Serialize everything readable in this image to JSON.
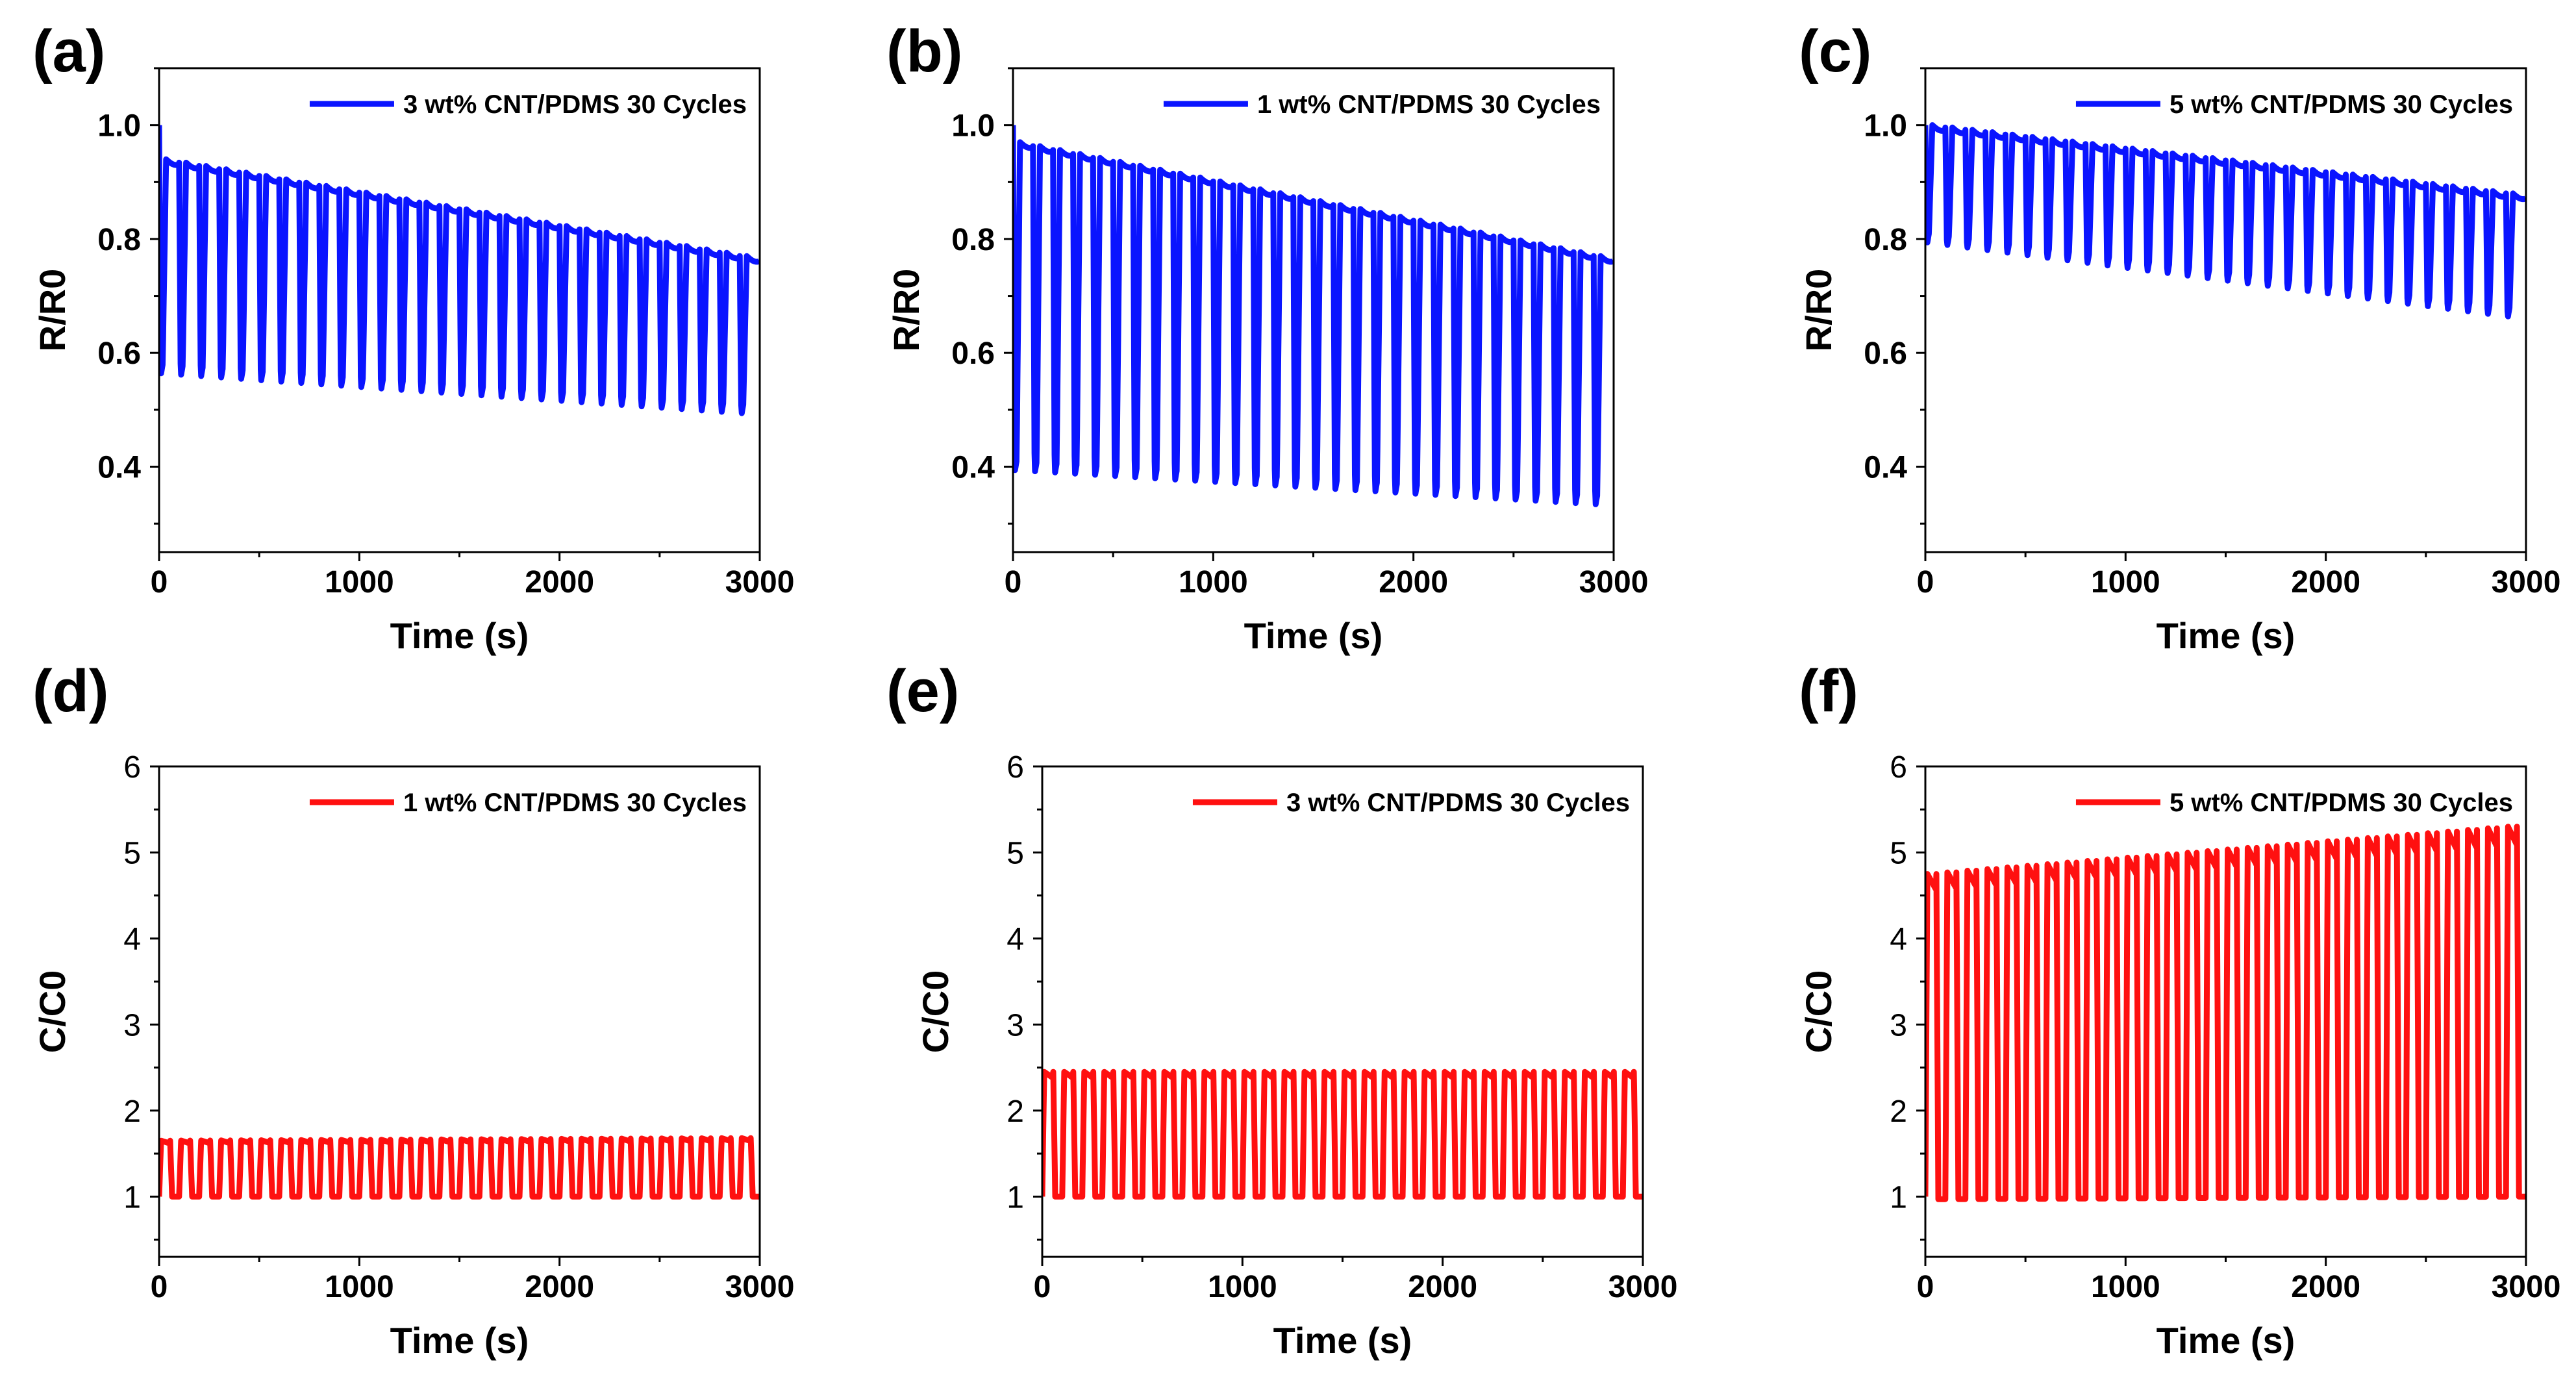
{
  "chart_data": [
    {
      "panel": "(a)",
      "type": "line",
      "title": "",
      "xlabel": "Time (s)",
      "ylabel": "R/R0",
      "xlim": [
        0,
        3000
      ],
      "ylim": [
        0.25,
        1.1
      ],
      "x_ticks": [
        "0",
        "1000",
        "2000",
        "3000"
      ],
      "y_ticks": [
        "0.4",
        "0.6",
        "0.8",
        "1.0"
      ],
      "legend": "3 wt% CNT/PDMS 30 Cycles",
      "legend_position": "top-right",
      "color": "#0a14ff",
      "series": [
        {
          "name": "3 wt% CNT/PDMS 30 Cycles",
          "cycles": 30,
          "period_s": 100,
          "start_value": 1.0,
          "peak_first": 0.94,
          "peak_last": 0.77,
          "trough_first": 0.56,
          "trough_last": 0.49
        }
      ]
    },
    {
      "panel": "(b)",
      "type": "line",
      "title": "",
      "xlabel": "Time (s)",
      "ylabel": "R/R0",
      "xlim": [
        0,
        3000
      ],
      "ylim": [
        0.25,
        1.1
      ],
      "x_ticks": [
        "0",
        "1000",
        "2000",
        "3000"
      ],
      "y_ticks": [
        "0.4",
        "0.6",
        "0.8",
        "1.0"
      ],
      "legend": "1 wt% CNT/PDMS 30 Cycles",
      "legend_position": "top-right",
      "color": "#0a14ff",
      "series": [
        {
          "name": "1 wt% CNT/PDMS 30 Cycles",
          "cycles": 30,
          "period_s": 100,
          "start_value": 1.0,
          "peak_first": 0.97,
          "peak_last": 0.77,
          "trough_first": 0.39,
          "trough_last": 0.33
        }
      ]
    },
    {
      "panel": "(c)",
      "type": "line",
      "title": "",
      "xlabel": "Time (s)",
      "ylabel": "R/R0",
      "xlim": [
        0,
        3000
      ],
      "ylim": [
        0.25,
        1.1
      ],
      "x_ticks": [
        "0",
        "1000",
        "2000",
        "3000"
      ],
      "y_ticks": [
        "0.4",
        "0.6",
        "0.8",
        "1.0"
      ],
      "legend": "5 wt% CNT/PDMS 30 Cycles",
      "legend_position": "top-right",
      "color": "#0a14ff",
      "series": [
        {
          "name": "5 wt% CNT/PDMS 30 Cycles",
          "cycles": 30,
          "period_s": 100,
          "start_value": 1.0,
          "peak_first": 1.0,
          "peak_last": 0.88,
          "trough_first": 0.79,
          "trough_last": 0.66
        }
      ]
    },
    {
      "panel": "(d)",
      "type": "line",
      "title": "",
      "xlabel": "Time (s)",
      "ylabel": "C/C0",
      "xlim": [
        0,
        3000
      ],
      "ylim": [
        0.3,
        6.0
      ],
      "x_ticks": [
        "0",
        "1000",
        "2000",
        "3000"
      ],
      "y_ticks": [
        "1",
        "2",
        "3",
        "4",
        "5",
        "6"
      ],
      "legend": "1 wt% CNT/PDMS 30 Cycles",
      "legend_position": "top-right",
      "color": "#ff1010",
      "series": [
        {
          "name": "1 wt% CNT/PDMS 30 Cycles",
          "cycles": 30,
          "period_s": 100,
          "start_value": 1.0,
          "peak_first": 1.65,
          "peak_last": 1.68,
          "trough_first": 1.0,
          "trough_last": 1.0
        }
      ]
    },
    {
      "panel": "(e)",
      "type": "line",
      "title": "",
      "xlabel": "Time (s)",
      "ylabel": "C/C0",
      "xlim": [
        0,
        3000
      ],
      "ylim": [
        0.3,
        6.0
      ],
      "x_ticks": [
        "0",
        "1000",
        "2000",
        "3000"
      ],
      "y_ticks": [
        "1",
        "2",
        "3",
        "4",
        "5",
        "6"
      ],
      "legend": "3 wt% CNT/PDMS 30 Cycles",
      "legend_position": "top-right",
      "color": "#ff1010",
      "series": [
        {
          "name": "3 wt% CNT/PDMS 30 Cycles",
          "cycles": 30,
          "period_s": 100,
          "start_value": 1.0,
          "peak_first": 2.45,
          "peak_last": 2.45,
          "trough_first": 1.0,
          "trough_last": 1.0
        }
      ]
    },
    {
      "panel": "(f)",
      "type": "line",
      "title": "",
      "xlabel": "Time (s)",
      "ylabel": "C/C0",
      "xlim": [
        0,
        3000
      ],
      "ylim": [
        0.3,
        6.0
      ],
      "x_ticks": [
        "0",
        "1000",
        "2000",
        "3000"
      ],
      "y_ticks": [
        "1",
        "2",
        "3",
        "4",
        "5",
        "6"
      ],
      "legend": "5 wt% CNT/PDMS 30 Cycles",
      "legend_position": "top-right",
      "color": "#ff1010",
      "series": [
        {
          "name": "5 wt% CNT/PDMS 30 Cycles",
          "cycles": 30,
          "period_s": 100,
          "start_value": 1.0,
          "peak_first": 4.75,
          "peak_last": 5.3,
          "trough_first": 0.97,
          "trough_last": 1.0
        }
      ]
    }
  ]
}
